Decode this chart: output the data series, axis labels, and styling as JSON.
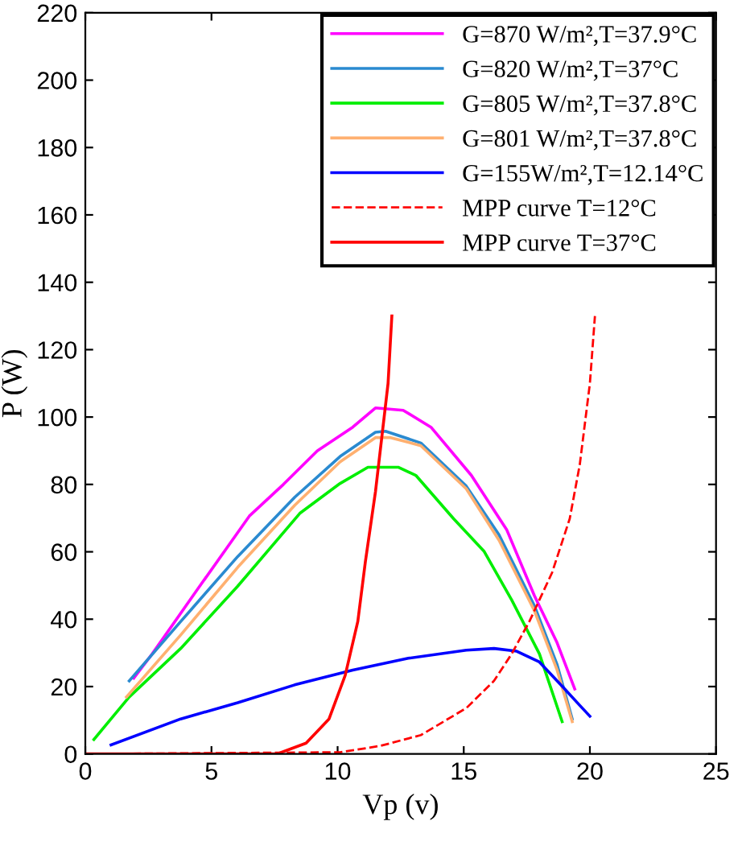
{
  "chart_data": {
    "type": "line",
    "xlabel": "Vp (v)",
    "ylabel": "P (W)",
    "xlim": [
      0,
      25
    ],
    "ylim": [
      0,
      220
    ],
    "xticks": [
      0,
      5,
      10,
      15,
      20,
      25
    ],
    "yticks": [
      0,
      20,
      40,
      60,
      80,
      100,
      120,
      140,
      160,
      180,
      200,
      220
    ],
    "grid": false,
    "legend": "top right",
    "marker": "none",
    "series": [
      {
        "name": "G=870 W/m²,T=37.9°C",
        "color": "#ff00ff",
        "x": [
          1.92,
          2.65,
          4.46,
          6.5,
          7.85,
          9.2,
          10.6,
          11.5,
          12.6,
          13.7,
          15.3,
          16.7,
          17.8,
          18.7,
          19.4
        ],
        "values": [
          22.5,
          29.7,
          49,
          70.6,
          80,
          90,
          97,
          102.7,
          102,
          97,
          82.7,
          66.6,
          47,
          33,
          19.3
        ]
      },
      {
        "name": "G=820 W/m²,T=37°C",
        "color": "#2a8ad0",
        "x": [
          1.74,
          3.78,
          6.04,
          8.3,
          10.1,
          11.5,
          11.9,
          13.3,
          15.1,
          16.4,
          17.8,
          18.7,
          19.3
        ],
        "values": [
          21.7,
          39.3,
          58.6,
          76.2,
          88.3,
          95.5,
          95.8,
          92.3,
          79.5,
          65,
          44,
          26.5,
          10.4
        ]
      },
      {
        "name": "G=805 W/m²,T=37.8°C",
        "color": "#00ee00",
        "x": [
          0.34,
          1.74,
          3.78,
          6.04,
          8.5,
          10.1,
          11.2,
          12.4,
          13.1,
          14.6,
          15.8,
          16.9,
          18.0,
          18.9
        ],
        "values": [
          4.3,
          16.9,
          31.3,
          49.8,
          71.4,
          80.3,
          85.1,
          85.1,
          82.7,
          69.8,
          60.2,
          45.7,
          29.7,
          9.6
        ]
      },
      {
        "name": "G=801 W/m²,T=37.8°C",
        "color": "#ffb070",
        "x": [
          1.63,
          3.78,
          6.04,
          8.3,
          10.1,
          11.5,
          12.1,
          13.3,
          15.1,
          16.4,
          17.8,
          18.7,
          19.3
        ],
        "values": [
          16.9,
          35.3,
          55.4,
          73.8,
          86.7,
          93.9,
          93.9,
          91.5,
          78.7,
          63.4,
          42.5,
          24.9,
          9.6
        ]
      },
      {
        "name": "G=155W/m²,T=12.14°C",
        "color": "#0000ff",
        "x": [
          1.02,
          3.78,
          6.04,
          8.3,
          10.6,
          12.8,
          15.1,
          16.2,
          17.1,
          18.0,
          18.9,
          19.6,
          20.0
        ],
        "values": [
          2.7,
          10.4,
          15.2,
          20.5,
          24.9,
          28.4,
          30.8,
          31.3,
          30.5,
          27.3,
          20.1,
          14.4,
          11.2
        ]
      },
      {
        "name": "MPP curve T=12°C",
        "color": "#ff0000",
        "line_style": "dashed",
        "x": [
          0,
          10.1,
          11.7,
          13.3,
          15.1,
          16.2,
          16.9,
          17.6,
          18.5,
          19.2,
          19.6,
          20.0,
          20.2
        ],
        "values": [
          0,
          0.5,
          2.4,
          5.6,
          13.6,
          21.7,
          29.7,
          39.3,
          53.8,
          69.8,
          85.9,
          110,
          130
        ]
      },
      {
        "name": "MPP curve T=37°C",
        "color": "#ff0000",
        "line_style": "solid",
        "x": [
          0,
          7.6,
          8.75,
          9.66,
          10.3,
          10.8,
          11.1,
          11.5,
          11.8,
          12.0,
          12.15
        ],
        "values": [
          0,
          0,
          3.2,
          10.4,
          23.3,
          39.3,
          57,
          77.8,
          97.1,
          110,
          130
        ]
      }
    ]
  }
}
